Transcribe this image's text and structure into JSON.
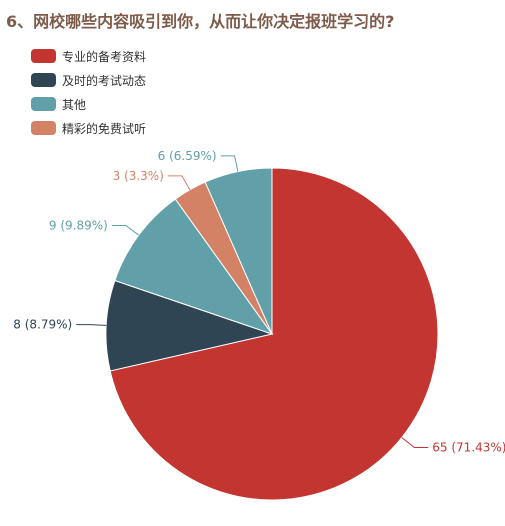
{
  "title": "6、网校哪些内容吸引到你，从而让你决定报班学习的?",
  "chart_data": {
    "type": "pie",
    "title": "6、网校哪些内容吸引到你，从而让你决定报班学习的?",
    "legend_position": "top-left",
    "start_angle_deg": 90,
    "direction": "clockwise",
    "series": [
      {
        "name": "专业的备考资料",
        "value": 65,
        "percent": "71.43%",
        "label": "65 (71.43%)",
        "color": "#c23531"
      },
      {
        "name": "及时的考试动态",
        "value": 8,
        "percent": "8.79%",
        "label": "8 (8.79%)",
        "color": "#2f4554"
      },
      {
        "name": "其他",
        "value": 9,
        "percent": "9.89%",
        "label": "9 (9.89%)",
        "color": "#61a0a8"
      },
      {
        "name": "精彩的免费试听",
        "value": 3,
        "percent": "3.3%",
        "label": "3 (3.3%)",
        "color": "#d48265"
      },
      {
        "name": "",
        "value": 6,
        "percent": "6.59%",
        "label": "6 (6.59%)",
        "color": "#61a0a8"
      }
    ]
  }
}
